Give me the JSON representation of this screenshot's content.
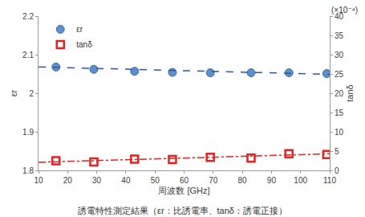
{
  "chart_data": {
    "type": "scatter",
    "title": "誘電特性測定結果（εr：比誘電率、tanδ：誘電正接）",
    "x_label": "周波数 [GHz]",
    "y_label": "εr",
    "y2_label": "tanδ",
    "annotation": "(×10⁻⁴)",
    "xlim": [
      10,
      110
    ],
    "xticks": [
      10,
      20,
      30,
      40,
      50,
      60,
      70,
      80,
      90,
      100,
      110
    ],
    "ylim": [
      1.8,
      2.2
    ],
    "yticks": [
      1.8,
      1.9,
      2,
      2.1,
      2.2
    ],
    "y2lim": [
      0,
      40
    ],
    "y2ticks": [
      0,
      5,
      10,
      15,
      20,
      25,
      30,
      35,
      40
    ],
    "grid": false,
    "legend": "upper left",
    "series": [
      {
        "name": "εr",
        "color": "#5b8fcf",
        "marker": "circle",
        "x": [
          16,
          29,
          43,
          56,
          69,
          83,
          96,
          109
        ],
        "values": [
          2.068,
          2.062,
          2.057,
          2.054,
          2.053,
          2.053,
          2.053,
          2.051
        ],
        "trend": {
          "x": [
            10,
            110
          ],
          "values": [
            2.068,
            2.049
          ],
          "line_style": "dashed",
          "color": "#2f5597"
        }
      },
      {
        "name": "tanδ",
        "axis": "y2",
        "color": "#e8201f",
        "marker": "square-open",
        "x": [
          16,
          29,
          43,
          56,
          69,
          83,
          96,
          109
        ],
        "values": [
          2.5,
          2.2,
          2.9,
          2.8,
          3.4,
          3.2,
          4.3,
          4.1
        ],
        "trend": {
          "x": [
            10,
            110
          ],
          "values": [
            2.1,
            4.3
          ],
          "line_style": "dashdot",
          "color": "#e8201f"
        }
      }
    ]
  }
}
